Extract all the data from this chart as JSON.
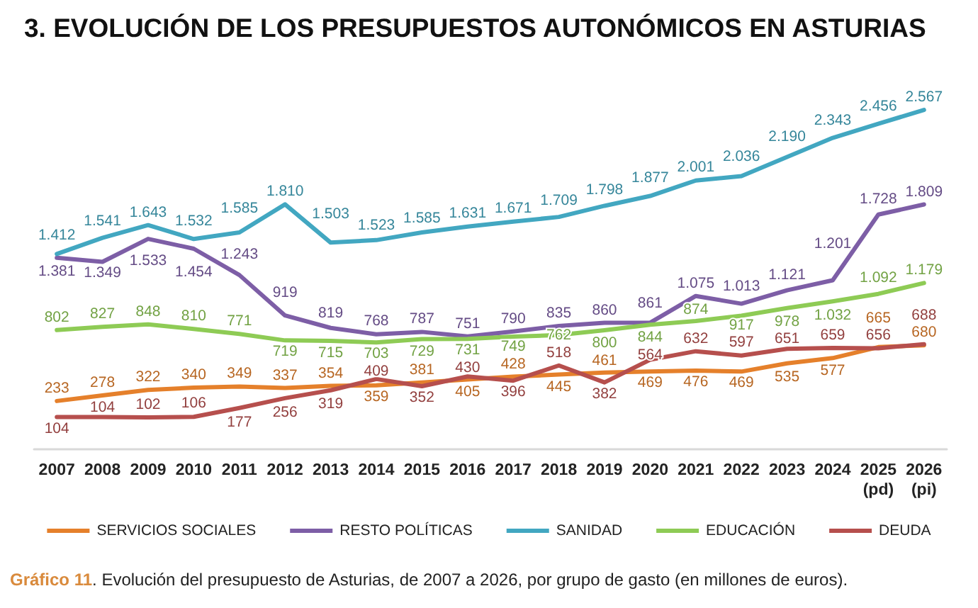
{
  "chart_data": {
    "type": "line",
    "title": "3. EVOLUCIÓN DE LOS PRESUPUESTOS AUTONÓMICOS EN ASTURIAS",
    "annotations": [
      "Gráfico 11. Evolución del presupuesto de Asturias, de 2007 a 2026, por grupo de gasto (en millones de euros)."
    ],
    "categories": [
      "2007",
      "2008",
      "2009",
      "2010",
      "2011",
      "2012",
      "2013",
      "2014",
      "2015",
      "2016",
      "2017",
      "2018",
      "2019",
      "2020",
      "2021",
      "2022",
      "2023",
      "2024",
      "2025 (pd)",
      "2026 (pi)"
    ],
    "series": [
      {
        "name": "SERVICIOS SOCIALES",
        "color": "#e5802b",
        "values": [
          233,
          278,
          322,
          340,
          349,
          337,
          354,
          359,
          381,
          405,
          428,
          445,
          461,
          469,
          476,
          469,
          535,
          577,
          665,
          680
        ],
        "value_labels": [
          "233",
          "278",
          "322",
          "340",
          "349",
          "337",
          "354",
          "359",
          "381",
          "405",
          "428",
          "445",
          "461",
          "469",
          "476",
          "469",
          "535",
          "577",
          "665",
          "680"
        ]
      },
      {
        "name": "RESTO POLÍTICAS",
        "color": "#7d5ea6",
        "values": [
          1381,
          1349,
          1533,
          1454,
          1243,
          919,
          819,
          768,
          787,
          751,
          790,
          835,
          860,
          861,
          1075,
          1013,
          1121,
          1201,
          1728,
          1809
        ],
        "value_labels": [
          "1.381",
          "1.349",
          "1.533",
          "1.454",
          "1.243",
          "919",
          "819",
          "768",
          "787",
          "751",
          "790",
          "835",
          "860",
          "861",
          "1.075",
          "1.013",
          "1.121",
          "1.201",
          "1.728",
          "1.809"
        ]
      },
      {
        "name": "SANIDAD",
        "color": "#42a7c1",
        "values": [
          1412,
          1541,
          1643,
          1532,
          1585,
          1810,
          1503,
          1523,
          1585,
          1631,
          1671,
          1709,
          1798,
          1877,
          2001,
          2036,
          2190,
          2343,
          2456,
          2567
        ],
        "value_labels": [
          "1.412",
          "1.541",
          "1.643",
          "1.532",
          "1.585",
          "1.810",
          "1.503",
          "1.523",
          "1.585",
          "1.631",
          "1.671",
          "1.709",
          "1.798",
          "1.877",
          "2.001",
          "2.036",
          "2.190",
          "2.343",
          "2.456",
          "2.567"
        ]
      },
      {
        "name": "EDUCACIÓN",
        "color": "#8ecb55",
        "values": [
          802,
          827,
          848,
          810,
          771,
          719,
          715,
          703,
          729,
          731,
          749,
          762,
          800,
          844,
          874,
          917,
          978,
          1032,
          1092,
          1179
        ],
        "value_labels": [
          "802",
          "827",
          "848",
          "810",
          "771",
          "719",
          "715",
          "703",
          "729",
          "731",
          "749",
          "762",
          "800",
          "844",
          "874",
          "917",
          "978",
          "1.032",
          "1.092",
          "1.179"
        ]
      },
      {
        "name": "DEUDA",
        "color": "#b64f4d",
        "values": [
          104,
          104,
          102,
          106,
          177,
          256,
          319,
          409,
          352,
          430,
          396,
          518,
          382,
          564,
          632,
          597,
          651,
          659,
          656,
          688
        ],
        "value_labels": [
          "104",
          "104",
          "102",
          "106",
          "177",
          "256",
          "319",
          "409",
          "352",
          "430",
          "396",
          "518",
          "382",
          "564",
          "632",
          "597",
          "651",
          "659",
          "656",
          "688"
        ]
      }
    ],
    "legend": "bottom",
    "marker": "none",
    "line_style": "solid",
    "tick_labels": "x"
  }
}
